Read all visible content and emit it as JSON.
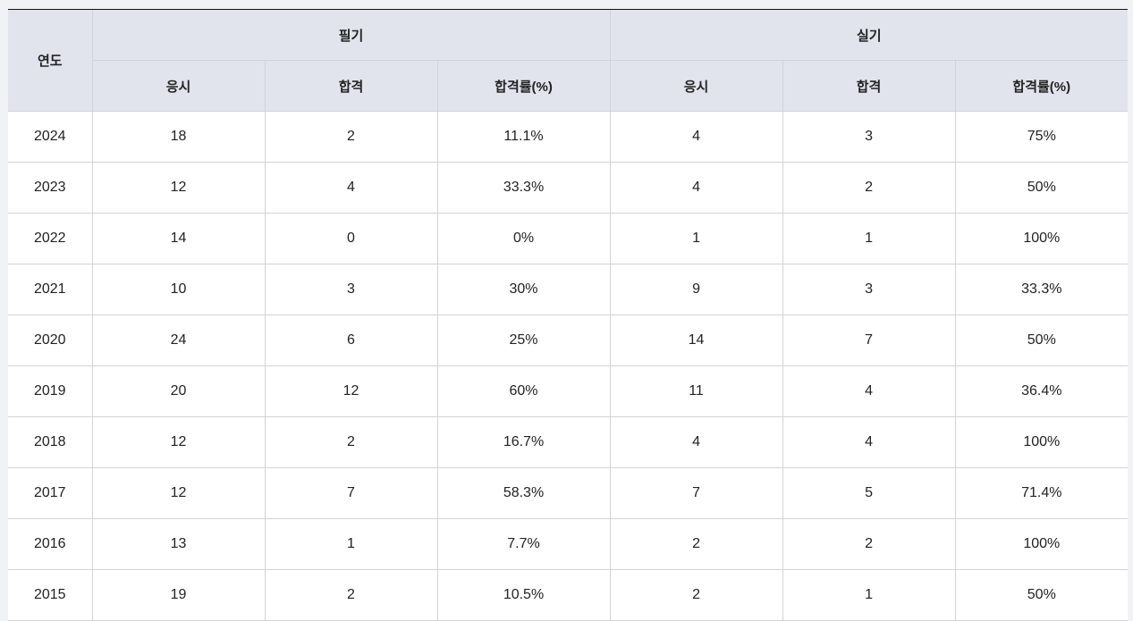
{
  "table": {
    "year_header": "연도",
    "groups": [
      "필기",
      "실기"
    ],
    "sub_headers": [
      "응시",
      "합격",
      "합격률(%)",
      "응시",
      "합격",
      "합격률(%)"
    ],
    "rows": [
      [
        "2024",
        "18",
        "2",
        "11.1%",
        "4",
        "3",
        "75%"
      ],
      [
        "2023",
        "12",
        "4",
        "33.3%",
        "4",
        "2",
        "50%"
      ],
      [
        "2022",
        "14",
        "0",
        "0%",
        "1",
        "1",
        "100%"
      ],
      [
        "2021",
        "10",
        "3",
        "30%",
        "9",
        "3",
        "33.3%"
      ],
      [
        "2020",
        "24",
        "6",
        "25%",
        "14",
        "7",
        "50%"
      ],
      [
        "2019",
        "20",
        "12",
        "60%",
        "11",
        "4",
        "36.4%"
      ],
      [
        "2018",
        "12",
        "2",
        "16.7%",
        "4",
        "4",
        "100%"
      ],
      [
        "2017",
        "12",
        "7",
        "58.3%",
        "7",
        "5",
        "71.4%"
      ],
      [
        "2016",
        "13",
        "1",
        "7.7%",
        "2",
        "2",
        "100%"
      ],
      [
        "2015",
        "19",
        "2",
        "10.5%",
        "2",
        "1",
        "50%"
      ]
    ]
  }
}
